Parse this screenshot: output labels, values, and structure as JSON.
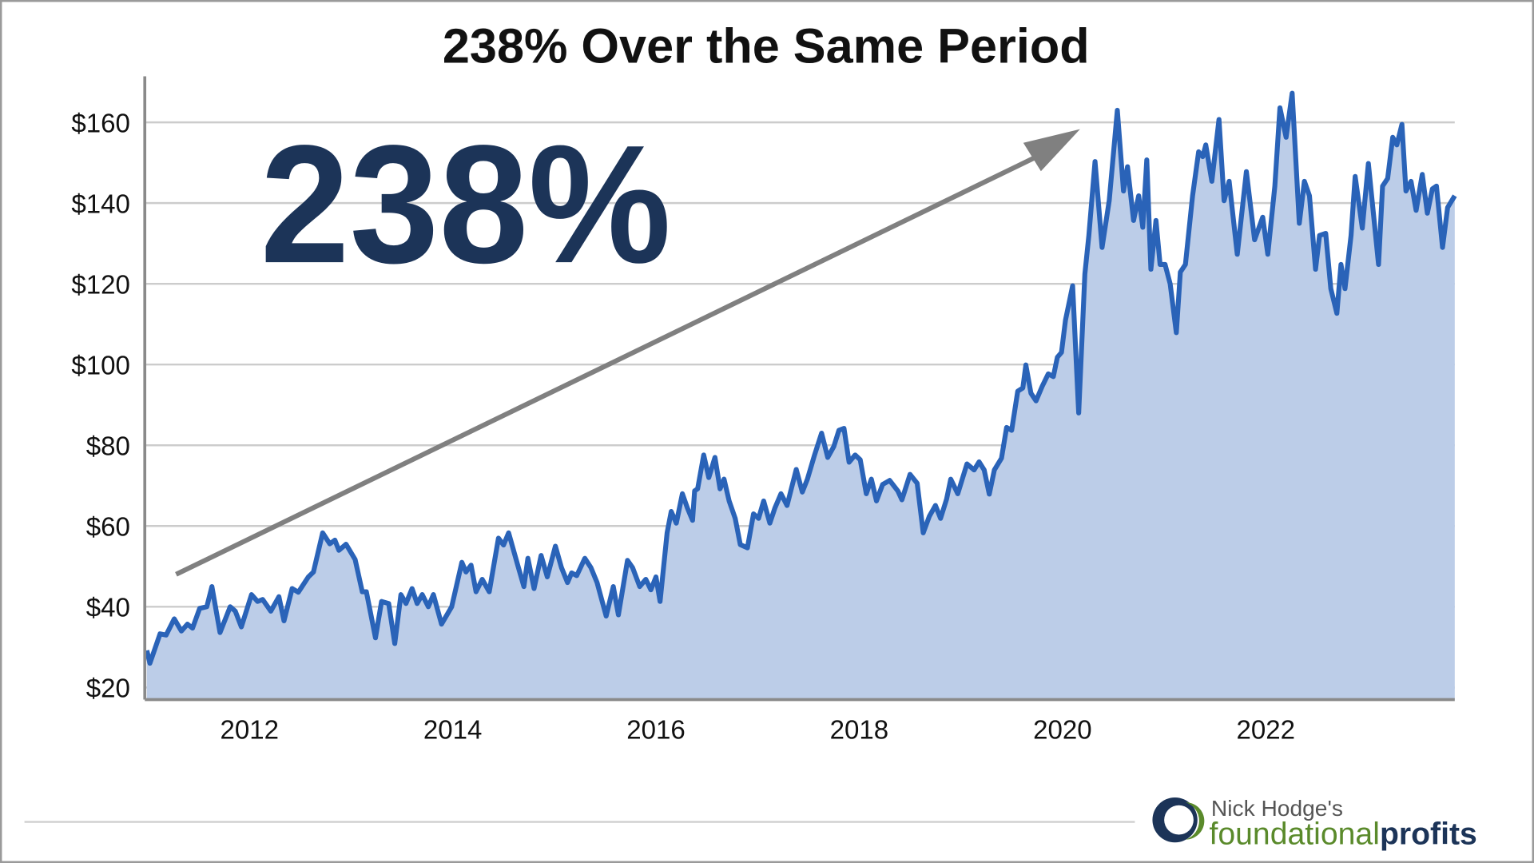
{
  "chart_data": {
    "type": "area",
    "title": "238% Over the Same Period",
    "annotation": "238%",
    "color": "#2a63b8",
    "fill_color": "#bccde8",
    "grid": true,
    "xlim": [
      2010.97,
      2023.86
    ],
    "xticks": [
      2012,
      2014,
      2016,
      2018,
      2020,
      2022
    ],
    "ylim": [
      17,
      171.4
    ],
    "yticks": [
      {
        "value": 20,
        "label": "$20"
      },
      {
        "value": 40,
        "label": "$40"
      },
      {
        "value": 60,
        "label": "$60"
      },
      {
        "value": 80,
        "label": "$80"
      },
      {
        "value": 100,
        "label": "$100"
      },
      {
        "value": 120,
        "label": "$120"
      },
      {
        "value": 140,
        "label": "$140"
      },
      {
        "value": 160,
        "label": "$160"
      }
    ],
    "x": [
      2010.99,
      2011.02,
      2011.12,
      2011.18,
      2011.26,
      2011.33,
      2011.39,
      2011.44,
      2011.51,
      2011.58,
      2011.63,
      2011.71,
      2011.81,
      2011.86,
      2011.92,
      2012.02,
      2012.08,
      2012.13,
      2012.21,
      2012.29,
      2012.34,
      2012.42,
      2012.48,
      2012.58,
      2012.63,
      2012.72,
      2012.79,
      2012.84,
      2012.88,
      2012.95,
      2013.04,
      2013.11,
      2013.15,
      2013.24,
      2013.3,
      2013.37,
      2013.43,
      2013.49,
      2013.54,
      2013.6,
      2013.65,
      2013.7,
      2013.76,
      2013.81,
      2013.89,
      2013.99,
      2014.09,
      2014.13,
      2014.18,
      2014.23,
      2014.29,
      2014.36,
      2014.45,
      2014.5,
      2014.55,
      2014.64,
      2014.7,
      2014.74,
      2014.8,
      2014.87,
      2014.93,
      2015.01,
      2015.07,
      2015.13,
      2015.17,
      2015.22,
      2015.3,
      2015.36,
      2015.42,
      2015.51,
      2015.58,
      2015.63,
      2015.72,
      2015.77,
      2015.84,
      2015.9,
      2015.95,
      2016.0,
      2016.04,
      2016.11,
      2016.15,
      2016.2,
      2016.26,
      2016.31,
      2016.36,
      2016.38,
      2016.41,
      2016.47,
      2016.52,
      2016.58,
      2016.63,
      2016.67,
      2016.72,
      2016.78,
      2016.83,
      2016.9,
      2016.96,
      2017.01,
      2017.06,
      2017.12,
      2017.17,
      2017.23,
      2017.29,
      2017.38,
      2017.44,
      2017.49,
      2017.56,
      2017.63,
      2017.69,
      2017.75,
      2017.8,
      2017.85,
      2017.9,
      2017.96,
      2018.01,
      2018.07,
      2018.12,
      2018.17,
      2018.23,
      2018.3,
      2018.38,
      2018.42,
      2018.5,
      2018.57,
      2018.63,
      2018.69,
      2018.75,
      2018.8,
      2018.86,
      2018.9,
      2018.97,
      2019.06,
      2019.13,
      2019.18,
      2019.23,
      2019.28,
      2019.33,
      2019.4,
      2019.45,
      2019.5,
      2019.56,
      2019.61,
      2019.64,
      2019.69,
      2019.74,
      2019.8,
      2019.86,
      2019.91,
      2019.95,
      2019.99,
      2020.03,
      2020.1,
      2020.16,
      2020.22,
      2020.26,
      2020.32,
      2020.39,
      2020.46,
      2020.54,
      2020.6,
      2020.64,
      2020.7,
      2020.75,
      2020.79,
      2020.83,
      2020.87,
      2020.92,
      2020.96,
      2021.01,
      2021.06,
      2021.12,
      2021.16,
      2021.21,
      2021.28,
      2021.34,
      2021.38,
      2021.41,
      2021.47,
      2021.54,
      2021.59,
      2021.64,
      2021.72,
      2021.81,
      2021.89,
      2021.97,
      2022.02,
      2022.09,
      2022.14,
      2022.2,
      2022.26,
      2022.33,
      2022.38,
      2022.43,
      2022.49,
      2022.53,
      2022.59,
      2022.64,
      2022.7,
      2022.74,
      2022.78,
      2022.84,
      2022.88,
      2022.95,
      2023.01,
      2023.11,
      2023.15,
      2023.2,
      2023.25,
      2023.29,
      2023.34,
      2023.38,
      2023.43,
      2023.48,
      2023.54,
      2023.59,
      2023.64,
      2023.68,
      2023.74,
      2023.79,
      2023.86
    ],
    "values": [
      29.2,
      26,
      33.3,
      33,
      37,
      34,
      35.7,
      34.7,
      39.6,
      40,
      45,
      33.6,
      40,
      38.9,
      35,
      43,
      41.3,
      41.8,
      38.9,
      42.5,
      36.5,
      44.5,
      43.6,
      47.4,
      48.6,
      58.3,
      55.6,
      56.5,
      54,
      55.5,
      51.7,
      43.7,
      43.7,
      32.3,
      41.3,
      40.8,
      30.9,
      43,
      40.8,
      44.5,
      40.8,
      43,
      40,
      43,
      35.7,
      40,
      51,
      48.6,
      50.3,
      43.7,
      46.8,
      43.7,
      57,
      55.3,
      58.3,
      50.3,
      45,
      52,
      44.5,
      52.7,
      47.4,
      55,
      49.7,
      46,
      48.4,
      47.7,
      52,
      49.7,
      46,
      37.7,
      45,
      38,
      51.5,
      49.7,
      45,
      46.8,
      44.2,
      47.4,
      41.3,
      58.3,
      63.6,
      60.7,
      68,
      64.4,
      61.4,
      68.7,
      69.2,
      77.6,
      72,
      77,
      69.2,
      71.6,
      66.2,
      61.9,
      55.4,
      54.6,
      63,
      61.9,
      66.2,
      60.7,
      64.4,
      68,
      65.1,
      74,
      68.4,
      71.6,
      77.6,
      83,
      77,
      79.7,
      83.7,
      84.2,
      75.8,
      77.6,
      76.4,
      68,
      71.6,
      66.2,
      70.3,
      71.3,
      68.7,
      66.5,
      72.8,
      70.6,
      58.3,
      62.4,
      65.1,
      61.9,
      66.7,
      71.6,
      68,
      75.4,
      73.9,
      75.9,
      73.9,
      67.9,
      73.9,
      76.8,
      84.4,
      83.7,
      93.4,
      94.2,
      99.9,
      92.9,
      91,
      94.6,
      97.7,
      97,
      101.8,
      103,
      111,
      119.5,
      88,
      122.4,
      132,
      150.3,
      129,
      140.6,
      163,
      143,
      149,
      135.7,
      141.8,
      134,
      150.7,
      123.6,
      135.7,
      124.8,
      124.8,
      120,
      107.9,
      122.9,
      124.8,
      141.8,
      152.7,
      151.5,
      154.4,
      145.4,
      160.7,
      140.6,
      145.4,
      127.3,
      147.8,
      130.9,
      136.5,
      127.3,
      144.2,
      163.6,
      156.3,
      167.2,
      135,
      145.4,
      141.8,
      123.6,
      132,
      132.5,
      118.8,
      112.7,
      124.8,
      118.8,
      132,
      146.6,
      133.8,
      149.8,
      124.8,
      144.2,
      146.1,
      156.3,
      154.4,
      159.5,
      143,
      145.4,
      138.2,
      147.1,
      137.5,
      143.5,
      144.2,
      129,
      138.9,
      141.8
    ]
  },
  "logo": {
    "byline": "Nick Hodge's",
    "brand": "foundational",
    "brand_bold": "profits"
  }
}
